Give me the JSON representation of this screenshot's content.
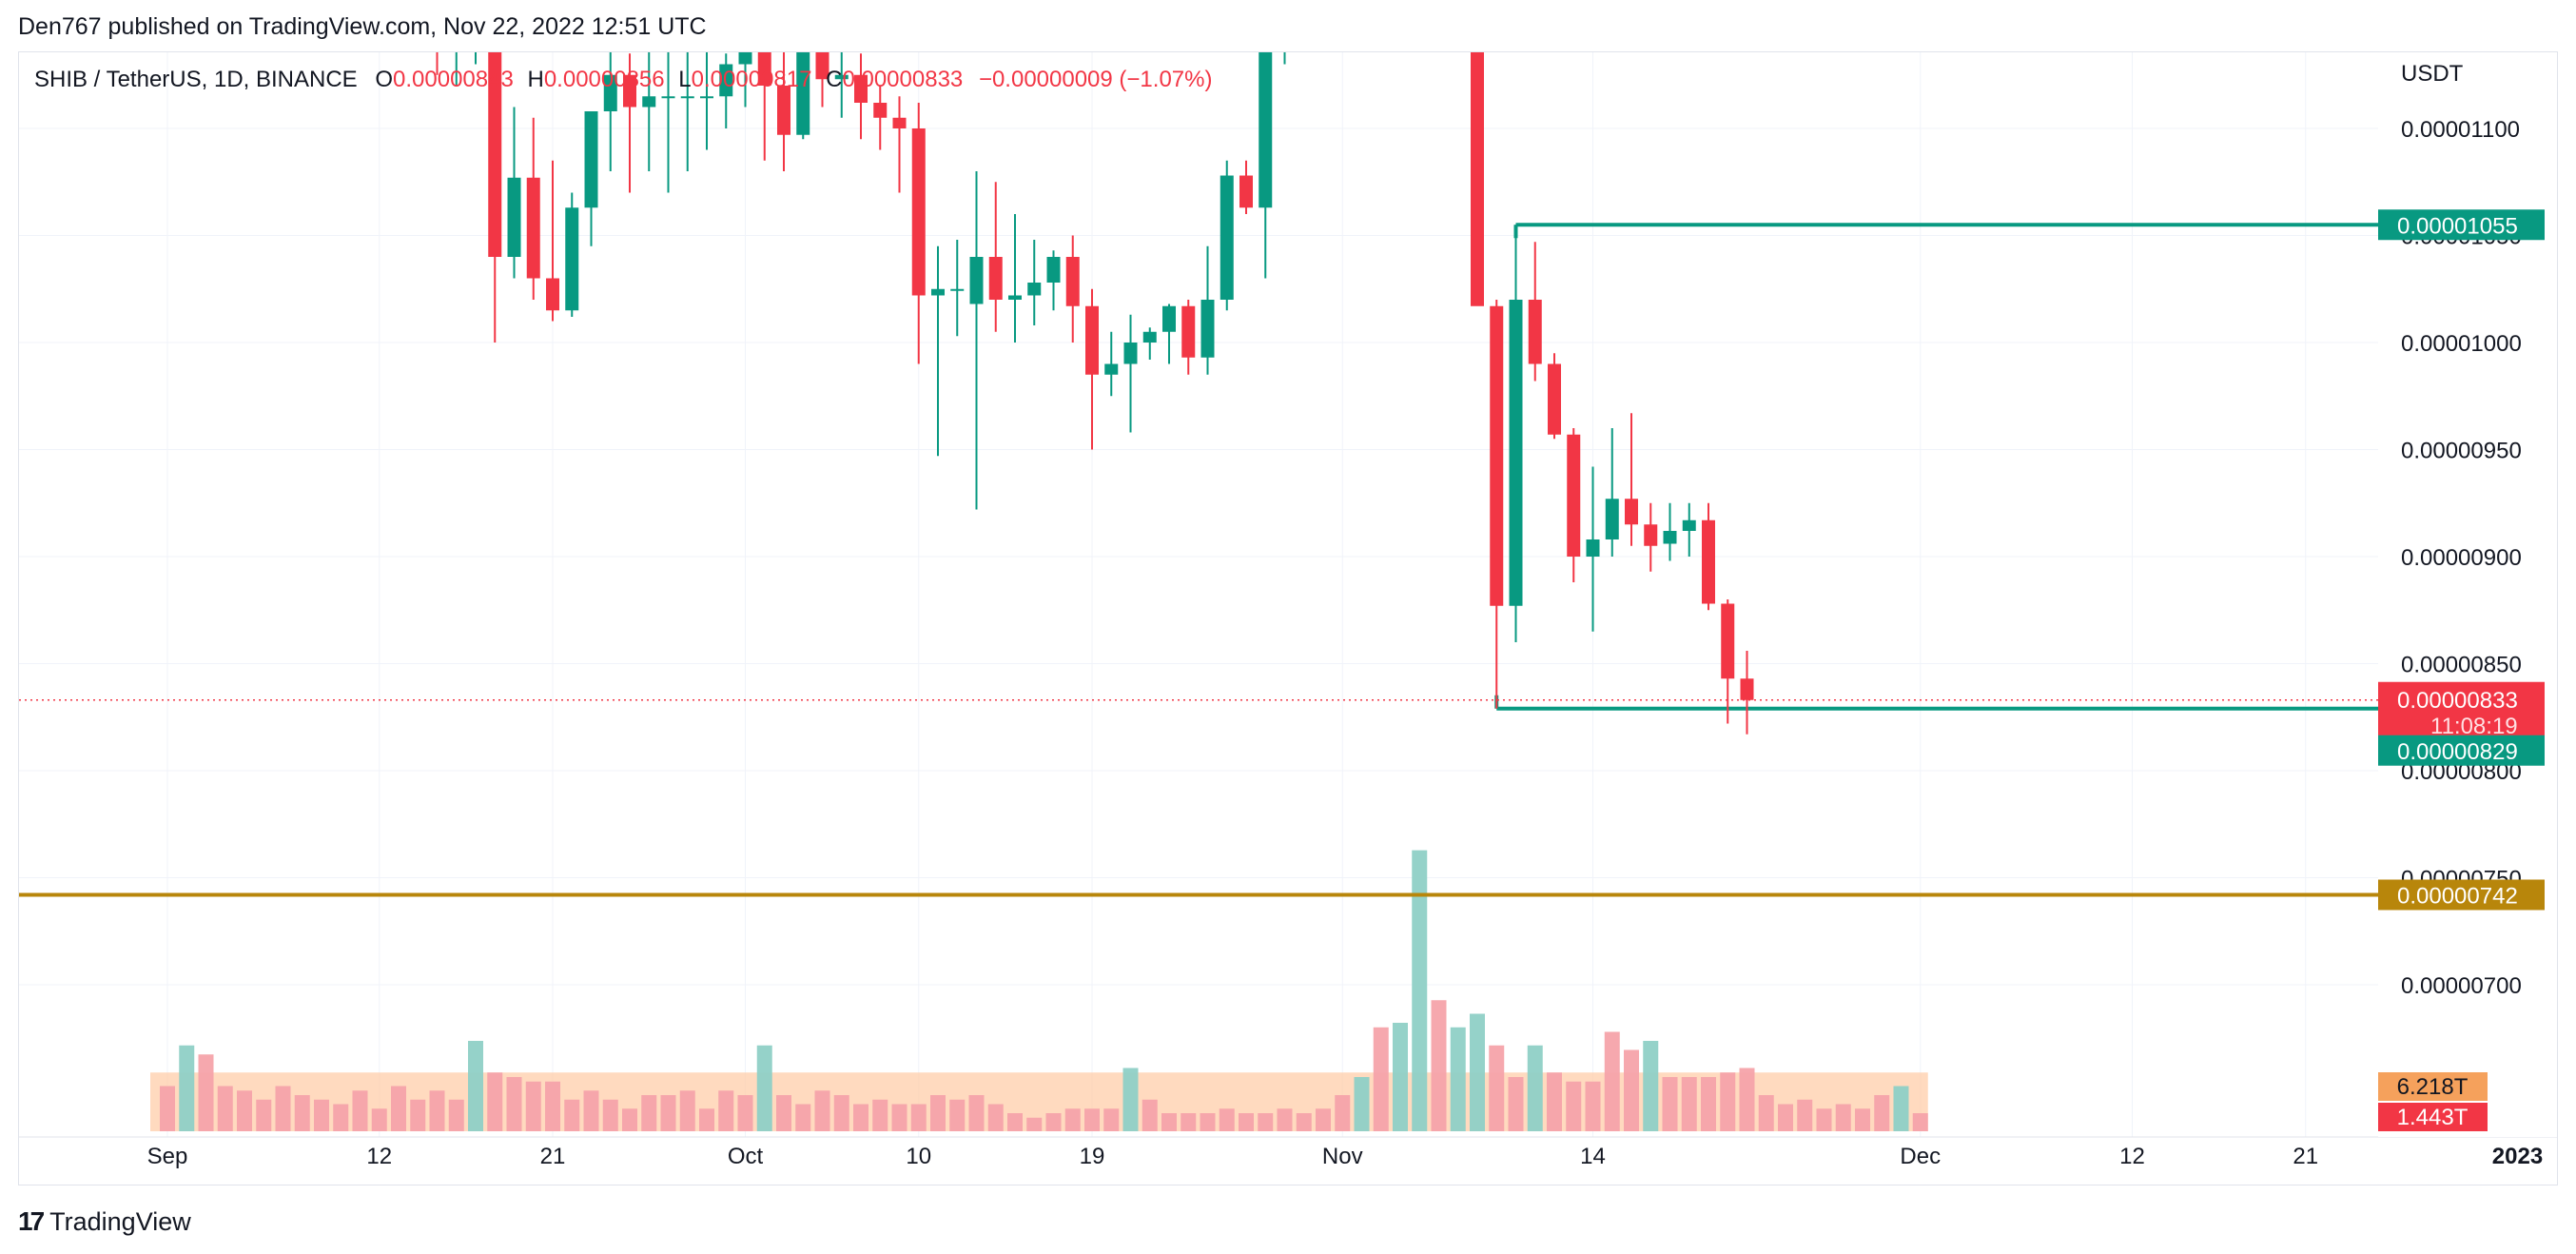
{
  "header": {
    "publisher_line": "Den767 published on TradingView.com, Nov 22, 2022 12:51 UTC"
  },
  "legend": {
    "symbol": "SHIB / TetherUS, 1D, BINANCE",
    "o_label": "O",
    "o_value": "0.00000843",
    "h_label": "H",
    "h_value": "0.00000856",
    "l_label": "L",
    "l_value": "0.00000817",
    "c_label": "C",
    "c_value": "0.00000833",
    "change": "−0.00000009 (−1.07%)"
  },
  "footer": {
    "brand": "TradingView",
    "logo_mark": "17"
  },
  "colors": {
    "up": "#089981",
    "down": "#f23645",
    "volume_up": "#8fd0c6",
    "volume_down": "#f5a3aa",
    "volume_ma": "#ffcba4",
    "support": "#b8860b",
    "grid": "#f0f3fa"
  },
  "chart_data": {
    "type": "candlestick",
    "symbol": "SHIB / TetherUS",
    "interval": "1D",
    "exchange": "BINANCE",
    "currency_label": "USDT",
    "y_range": [
      6.6e-06,
      1.11e-05
    ],
    "y_ticks": [
      "0.00001100",
      "0.00001050",
      "0.00001000",
      "0.00000950",
      "0.00000900",
      "0.00000850",
      "0.00000800",
      "0.00000750",
      "0.00000700"
    ],
    "x_ticks": [
      {
        "label": "Sep",
        "date": "2022-09-01"
      },
      {
        "label": "12",
        "date": "2022-09-12"
      },
      {
        "label": "21",
        "date": "2022-09-21"
      },
      {
        "label": "Oct",
        "date": "2022-10-01"
      },
      {
        "label": "10",
        "date": "2022-10-10"
      },
      {
        "label": "19",
        "date": "2022-10-19"
      },
      {
        "label": "Nov",
        "date": "2022-11-01"
      },
      {
        "label": "14",
        "date": "2022-11-14"
      },
      {
        "label": "Dec",
        "date": "2022-12-01"
      },
      {
        "label": "12",
        "date": "2022-12-12"
      },
      {
        "label": "21",
        "date": "2022-12-21"
      },
      {
        "label": "2023",
        "date": "2023-01-01"
      }
    ],
    "candles": [
      {
        "date": "2022-09-15",
        "o": 1.155e-05,
        "h": 1.17e-05,
        "l": 1.125e-05,
        "c": 1.14e-05
      },
      {
        "date": "2022-09-16",
        "o": 1.14e-05,
        "h": 1.16e-05,
        "l": 1.12e-05,
        "c": 1.145e-05
      },
      {
        "date": "2022-09-17",
        "o": 1.145e-05,
        "h": 1.165e-05,
        "l": 1.13e-05,
        "c": 1.15e-05
      },
      {
        "date": "2022-09-18",
        "o": 1.15e-05,
        "h": 1.16e-05,
        "l": 1e-05,
        "c": 1.04e-05
      },
      {
        "date": "2022-09-19",
        "o": 1.04e-05,
        "h": 1.11e-05,
        "l": 1.03e-05,
        "c": 1.077e-05
      },
      {
        "date": "2022-09-20",
        "o": 1.077e-05,
        "h": 1.105e-05,
        "l": 1.02e-05,
        "c": 1.03e-05
      },
      {
        "date": "2022-09-21",
        "o": 1.03e-05,
        "h": 1.085e-05,
        "l": 1.01e-05,
        "c": 1.015e-05
      },
      {
        "date": "2022-09-22",
        "o": 1.015e-05,
        "h": 1.07e-05,
        "l": 1.012e-05,
        "c": 1.063e-05
      },
      {
        "date": "2022-09-23",
        "o": 1.063e-05,
        "h": 1.105e-05,
        "l": 1.045e-05,
        "c": 1.108e-05
      },
      {
        "date": "2022-09-24",
        "o": 1.108e-05,
        "h": 1.165e-05,
        "l": 1.08e-05,
        "c": 1.125e-05
      },
      {
        "date": "2022-09-25",
        "o": 1.125e-05,
        "h": 1.135e-05,
        "l": 1.07e-05,
        "c": 1.11e-05
      },
      {
        "date": "2022-09-26",
        "o": 1.11e-05,
        "h": 1.14e-05,
        "l": 1.08e-05,
        "c": 1.115e-05
      },
      {
        "date": "2022-09-27",
        "o": 1.115e-05,
        "h": 1.15e-05,
        "l": 1.07e-05,
        "c": 1.115e-05
      },
      {
        "date": "2022-09-28",
        "o": 1.115e-05,
        "h": 1.145e-05,
        "l": 1.08e-05,
        "c": 1.115e-05
      },
      {
        "date": "2022-09-29",
        "o": 1.115e-05,
        "h": 1.14e-05,
        "l": 1.09e-05,
        "c": 1.115e-05
      },
      {
        "date": "2022-09-30",
        "o": 1.115e-05,
        "h": 1.135e-05,
        "l": 1.1e-05,
        "c": 1.13e-05
      },
      {
        "date": "2022-10-01",
        "o": 1.13e-05,
        "h": 1.16e-05,
        "l": 1.11e-05,
        "c": 1.14e-05
      },
      {
        "date": "2022-10-02",
        "o": 1.14e-05,
        "h": 1.15e-05,
        "l": 1.085e-05,
        "c": 1.12e-05
      },
      {
        "date": "2022-10-03",
        "o": 1.12e-05,
        "h": 1.15e-05,
        "l": 1.08e-05,
        "c": 1.097e-05
      },
      {
        "date": "2022-10-04",
        "o": 1.097e-05,
        "h": 1.16e-05,
        "l": 1.095e-05,
        "c": 1.15e-05
      },
      {
        "date": "2022-10-05",
        "o": 1.15e-05,
        "h": 1.17e-05,
        "l": 1.11e-05,
        "c": 1.123e-05
      },
      {
        "date": "2022-10-06",
        "o": 1.123e-05,
        "h": 1.14e-05,
        "l": 1.105e-05,
        "c": 1.125e-05
      },
      {
        "date": "2022-10-07",
        "o": 1.125e-05,
        "h": 1.135e-05,
        "l": 1.095e-05,
        "c": 1.112e-05
      },
      {
        "date": "2022-10-08",
        "o": 1.112e-05,
        "h": 1.12e-05,
        "l": 1.09e-05,
        "c": 1.105e-05
      },
      {
        "date": "2022-10-09",
        "o": 1.105e-05,
        "h": 1.115e-05,
        "l": 1.07e-05,
        "c": 1.1e-05
      },
      {
        "date": "2022-10-10",
        "o": 1.1e-05,
        "h": 1.112e-05,
        "l": 9.9e-06,
        "c": 1.022e-05
      },
      {
        "date": "2022-10-11",
        "o": 1.022e-05,
        "h": 1.045e-05,
        "l": 9.47e-06,
        "c": 1.025e-05
      },
      {
        "date": "2022-10-12",
        "o": 1.025e-05,
        "h": 1.048e-05,
        "l": 1.003e-05,
        "c": 1.025e-05
      },
      {
        "date": "2022-10-13",
        "o": 1.018e-05,
        "h": 1.08e-05,
        "l": 9.22e-06,
        "c": 1.04e-05
      },
      {
        "date": "2022-10-14",
        "o": 1.04e-05,
        "h": 1.075e-05,
        "l": 1.005e-05,
        "c": 1.02e-05
      },
      {
        "date": "2022-10-15",
        "o": 1.02e-05,
        "h": 1.06e-05,
        "l": 1e-05,
        "c": 1.022e-05
      },
      {
        "date": "2022-10-16",
        "o": 1.022e-05,
        "h": 1.048e-05,
        "l": 1.008e-05,
        "c": 1.028e-05
      },
      {
        "date": "2022-10-17",
        "o": 1.028e-05,
        "h": 1.043e-05,
        "l": 1.015e-05,
        "c": 1.04e-05
      },
      {
        "date": "2022-10-18",
        "o": 1.04e-05,
        "h": 1.05e-05,
        "l": 1e-05,
        "c": 1.017e-05
      },
      {
        "date": "2022-10-19",
        "o": 1.017e-05,
        "h": 1.025e-05,
        "l": 9.5e-06,
        "c": 9.85e-06
      },
      {
        "date": "2022-10-20",
        "o": 9.85e-06,
        "h": 1.005e-05,
        "l": 9.75e-06,
        "c": 9.9e-06
      },
      {
        "date": "2022-10-21",
        "o": 9.9e-06,
        "h": 1.013e-05,
        "l": 9.58e-06,
        "c": 1e-05
      },
      {
        "date": "2022-10-22",
        "o": 1e-05,
        "h": 1.007e-05,
        "l": 9.92e-06,
        "c": 1.005e-05
      },
      {
        "date": "2022-10-23",
        "o": 1.005e-05,
        "h": 1.018e-05,
        "l": 9.9e-06,
        "c": 1.017e-05
      },
      {
        "date": "2022-10-24",
        "o": 1.017e-05,
        "h": 1.02e-05,
        "l": 9.85e-06,
        "c": 9.93e-06
      },
      {
        "date": "2022-10-25",
        "o": 9.93e-06,
        "h": 1.045e-05,
        "l": 9.85e-06,
        "c": 1.02e-05
      },
      {
        "date": "2022-10-26",
        "o": 1.02e-05,
        "h": 1.085e-05,
        "l": 1.015e-05,
        "c": 1.078e-05
      },
      {
        "date": "2022-10-27",
        "o": 1.078e-05,
        "h": 1.085e-05,
        "l": 1.06e-05,
        "c": 1.063e-05
      },
      {
        "date": "2022-10-28",
        "o": 1.063e-05,
        "h": 1.145e-05,
        "l": 1.03e-05,
        "c": 1.14e-05
      },
      {
        "date": "2022-10-29",
        "o": 1.14e-05,
        "h": 1.24e-05,
        "l": 1.13e-05,
        "c": 1.2e-05
      },
      {
        "date": "2022-11-08",
        "o": 1.165e-05,
        "h": 1.17e-05,
        "l": 1.02e-05,
        "c": 1.017e-05
      },
      {
        "date": "2022-11-09",
        "o": 1.017e-05,
        "h": 1.02e-05,
        "l": 8.29e-06,
        "c": 8.77e-06
      },
      {
        "date": "2022-11-10",
        "o": 8.77e-06,
        "h": 1.055e-05,
        "l": 8.6e-06,
        "c": 1.02e-05
      },
      {
        "date": "2022-11-11",
        "o": 1.02e-05,
        "h": 1.047e-05,
        "l": 9.82e-06,
        "c": 9.9e-06
      },
      {
        "date": "2022-11-12",
        "o": 9.9e-06,
        "h": 9.95e-06,
        "l": 9.55e-06,
        "c": 9.57e-06
      },
      {
        "date": "2022-11-13",
        "o": 9.57e-06,
        "h": 9.6e-06,
        "l": 8.88e-06,
        "c": 9e-06
      },
      {
        "date": "2022-11-14",
        "o": 9e-06,
        "h": 9.42e-06,
        "l": 8.65e-06,
        "c": 9.08e-06
      },
      {
        "date": "2022-11-15",
        "o": 9.08e-06,
        "h": 9.6e-06,
        "l": 9e-06,
        "c": 9.27e-06
      },
      {
        "date": "2022-11-16",
        "o": 9.27e-06,
        "h": 9.67e-06,
        "l": 9.05e-06,
        "c": 9.15e-06
      },
      {
        "date": "2022-11-17",
        "o": 9.15e-06,
        "h": 9.25e-06,
        "l": 8.93e-06,
        "c": 9.05e-06
      },
      {
        "date": "2022-11-18",
        "o": 9.06e-06,
        "h": 9.25e-06,
        "l": 8.98e-06,
        "c": 9.12e-06
      },
      {
        "date": "2022-11-19",
        "o": 9.12e-06,
        "h": 9.25e-06,
        "l": 9e-06,
        "c": 9.17e-06
      },
      {
        "date": "2022-11-20",
        "o": 9.17e-06,
        "h": 9.25e-06,
        "l": 8.75e-06,
        "c": 8.78e-06
      },
      {
        "date": "2022-11-21",
        "o": 8.78e-06,
        "h": 8.8e-06,
        "l": 8.22e-06,
        "c": 8.43e-06
      },
      {
        "date": "2022-11-22",
        "o": 8.43e-06,
        "h": 8.56e-06,
        "l": 8.17e-06,
        "c": 8.33e-06
      }
    ],
    "volume": {
      "scale_max": 8.0,
      "unit": "T",
      "labels": [
        "6.218T",
        "1.443T"
      ],
      "bars": [
        {
          "date": "2022-09-01",
          "v": 1.0,
          "up": false
        },
        {
          "date": "2022-09-02",
          "v": 1.9,
          "up": true
        },
        {
          "date": "2022-09-03",
          "v": 1.7,
          "up": false
        },
        {
          "date": "2022-09-04",
          "v": 1.0,
          "up": false
        },
        {
          "date": "2022-09-05",
          "v": 0.9,
          "up": false
        },
        {
          "date": "2022-09-06",
          "v": 0.7,
          "up": false
        },
        {
          "date": "2022-09-07",
          "v": 1.0,
          "up": false
        },
        {
          "date": "2022-09-08",
          "v": 0.8,
          "up": false
        },
        {
          "date": "2022-09-09",
          "v": 0.7,
          "up": false
        },
        {
          "date": "2022-09-10",
          "v": 0.6,
          "up": false
        },
        {
          "date": "2022-09-11",
          "v": 0.9,
          "up": false
        },
        {
          "date": "2022-09-12",
          "v": 0.5,
          "up": false
        },
        {
          "date": "2022-09-13",
          "v": 1.0,
          "up": false
        },
        {
          "date": "2022-09-14",
          "v": 0.7,
          "up": false
        },
        {
          "date": "2022-09-15",
          "v": 0.9,
          "up": false
        },
        {
          "date": "2022-09-16",
          "v": 0.7,
          "up": false
        },
        {
          "date": "2022-09-17",
          "v": 2.0,
          "up": true
        },
        {
          "date": "2022-09-18",
          "v": 1.3,
          "up": false
        },
        {
          "date": "2022-09-19",
          "v": 1.2,
          "up": false
        },
        {
          "date": "2022-09-20",
          "v": 1.1,
          "up": false
        },
        {
          "date": "2022-09-21",
          "v": 1.1,
          "up": false
        },
        {
          "date": "2022-09-22",
          "v": 0.7,
          "up": false
        },
        {
          "date": "2022-09-23",
          "v": 0.9,
          "up": false
        },
        {
          "date": "2022-09-24",
          "v": 0.7,
          "up": false
        },
        {
          "date": "2022-09-25",
          "v": 0.5,
          "up": false
        },
        {
          "date": "2022-09-26",
          "v": 0.8,
          "up": false
        },
        {
          "date": "2022-09-27",
          "v": 0.8,
          "up": false
        },
        {
          "date": "2022-09-28",
          "v": 0.9,
          "up": false
        },
        {
          "date": "2022-09-29",
          "v": 0.5,
          "up": false
        },
        {
          "date": "2022-09-30",
          "v": 0.9,
          "up": false
        },
        {
          "date": "2022-10-01",
          "v": 0.8,
          "up": false
        },
        {
          "date": "2022-10-02",
          "v": 1.9,
          "up": true
        },
        {
          "date": "2022-10-03",
          "v": 0.8,
          "up": false
        },
        {
          "date": "2022-10-04",
          "v": 0.6,
          "up": false
        },
        {
          "date": "2022-10-05",
          "v": 0.9,
          "up": false
        },
        {
          "date": "2022-10-06",
          "v": 0.8,
          "up": false
        },
        {
          "date": "2022-10-07",
          "v": 0.6,
          "up": false
        },
        {
          "date": "2022-10-08",
          "v": 0.7,
          "up": false
        },
        {
          "date": "2022-10-09",
          "v": 0.6,
          "up": false
        },
        {
          "date": "2022-10-10",
          "v": 0.6,
          "up": false
        },
        {
          "date": "2022-10-11",
          "v": 0.8,
          "up": false
        },
        {
          "date": "2022-10-12",
          "v": 0.7,
          "up": false
        },
        {
          "date": "2022-10-13",
          "v": 0.8,
          "up": false
        },
        {
          "date": "2022-10-14",
          "v": 0.6,
          "up": false
        },
        {
          "date": "2022-10-15",
          "v": 0.4,
          "up": false
        },
        {
          "date": "2022-10-16",
          "v": 0.3,
          "up": false
        },
        {
          "date": "2022-10-17",
          "v": 0.4,
          "up": false
        },
        {
          "date": "2022-10-18",
          "v": 0.5,
          "up": false
        },
        {
          "date": "2022-10-19",
          "v": 0.5,
          "up": false
        },
        {
          "date": "2022-10-20",
          "v": 0.5,
          "up": false
        },
        {
          "date": "2022-10-21",
          "v": 1.4,
          "up": true
        },
        {
          "date": "2022-10-22",
          "v": 0.7,
          "up": false
        },
        {
          "date": "2022-10-23",
          "v": 0.4,
          "up": false
        },
        {
          "date": "2022-10-24",
          "v": 0.4,
          "up": false
        },
        {
          "date": "2022-10-25",
          "v": 0.4,
          "up": false
        },
        {
          "date": "2022-10-26",
          "v": 0.5,
          "up": false
        },
        {
          "date": "2022-10-27",
          "v": 0.4,
          "up": false
        },
        {
          "date": "2022-10-28",
          "v": 0.4,
          "up": false
        },
        {
          "date": "2022-10-29",
          "v": 0.5,
          "up": false
        },
        {
          "date": "2022-10-30",
          "v": 0.4,
          "up": false
        },
        {
          "date": "2022-10-31",
          "v": 0.5,
          "up": false
        },
        {
          "date": "2022-11-01",
          "v": 0.8,
          "up": false
        },
        {
          "date": "2022-11-02",
          "v": 1.2,
          "up": true
        },
        {
          "date": "2022-11-03",
          "v": 2.3,
          "up": false
        },
        {
          "date": "2022-11-04",
          "v": 2.4,
          "up": true
        },
        {
          "date": "2022-11-05",
          "v": 6.218,
          "up": true
        },
        {
          "date": "2022-11-06",
          "v": 2.9,
          "up": false
        },
        {
          "date": "2022-11-07",
          "v": 2.3,
          "up": true
        },
        {
          "date": "2022-11-08",
          "v": 2.6,
          "up": true
        },
        {
          "date": "2022-11-09",
          "v": 1.9,
          "up": false
        },
        {
          "date": "2022-11-10",
          "v": 1.2,
          "up": false
        },
        {
          "date": "2022-11-11",
          "v": 1.9,
          "up": true
        },
        {
          "date": "2022-11-12",
          "v": 1.3,
          "up": false
        },
        {
          "date": "2022-11-13",
          "v": 1.1,
          "up": false
        },
        {
          "date": "2022-11-14",
          "v": 1.1,
          "up": false
        },
        {
          "date": "2022-11-15",
          "v": 2.2,
          "up": false
        },
        {
          "date": "2022-11-16",
          "v": 1.8,
          "up": false
        },
        {
          "date": "2022-11-17",
          "v": 2.0,
          "up": true
        },
        {
          "date": "2022-11-18",
          "v": 1.2,
          "up": false
        },
        {
          "date": "2022-11-19",
          "v": 1.2,
          "up": false
        },
        {
          "date": "2022-11-20",
          "v": 1.2,
          "up": false
        },
        {
          "date": "2022-11-21",
          "v": 1.3,
          "up": false
        },
        {
          "date": "2022-11-22",
          "v": 1.4,
          "up": false
        },
        {
          "date": "2022-11-23",
          "v": 0.8,
          "up": false
        },
        {
          "date": "2022-11-24",
          "v": 0.6,
          "up": false
        },
        {
          "date": "2022-11-25",
          "v": 0.7,
          "up": false
        },
        {
          "date": "2022-11-26",
          "v": 0.5,
          "up": false
        },
        {
          "date": "2022-11-27",
          "v": 0.6,
          "up": false
        },
        {
          "date": "2022-11-28",
          "v": 0.5,
          "up": false
        },
        {
          "date": "2022-11-29",
          "v": 0.8,
          "up": false
        },
        {
          "date": "2022-11-30",
          "v": 1.0,
          "up": true
        },
        {
          "date": "2022-12-01",
          "v": 0.4,
          "up": false
        }
      ],
      "ma_level": 1.3
    },
    "lines": [
      {
        "name": "resistance",
        "price": 1.055e-05,
        "label": "0.00001055",
        "color": "#089981",
        "from": "2022-11-10"
      },
      {
        "name": "support",
        "price": 8.29e-06,
        "label": "0.00000829",
        "color": "#089981",
        "from": "2022-11-09"
      },
      {
        "name": "level",
        "price": 7.42e-06,
        "label": "0.00000742",
        "color": "#b8860b",
        "full_width": true
      }
    ],
    "last_price": {
      "price": 8.33e-06,
      "label": "0.00000833",
      "countdown": "11:08:19"
    }
  }
}
